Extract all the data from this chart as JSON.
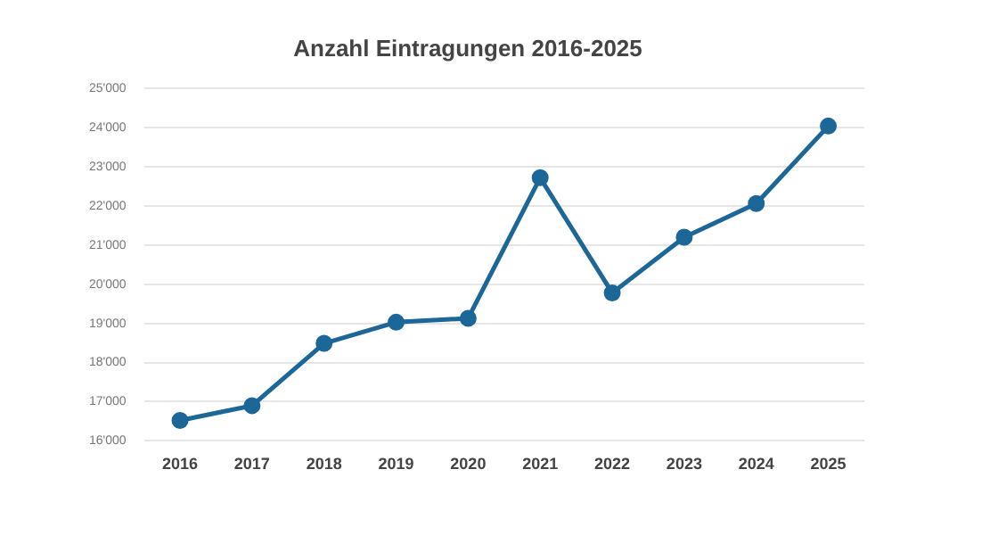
{
  "chart_data": {
    "type": "line",
    "title": "Anzahl Eintragungen 2016-2025",
    "categories": [
      "2016",
      "2017",
      "2018",
      "2019",
      "2020",
      "2021",
      "2022",
      "2023",
      "2024",
      "2025"
    ],
    "series": [
      {
        "color": "#1c6798",
        "values": [
          16520,
          16900,
          18490,
          19030,
          19130,
          22720,
          19780,
          21200,
          22060,
          24040
        ]
      }
    ],
    "ylim": [
      16000,
      25000
    ],
    "yticks": [
      {
        "value": 16000,
        "label": "16'000"
      },
      {
        "value": 17000,
        "label": "17'000"
      },
      {
        "value": 18000,
        "label": "18'000"
      },
      {
        "value": 19000,
        "label": "19'000"
      },
      {
        "value": 20000,
        "label": "20'000"
      },
      {
        "value": 21000,
        "label": "21'000"
      },
      {
        "value": 22000,
        "label": "22'000"
      },
      {
        "value": 23000,
        "label": "23'000"
      },
      {
        "value": 24000,
        "label": "24'000"
      },
      {
        "value": 25000,
        "label": "25'000"
      }
    ],
    "grid": "y",
    "legend": false,
    "marker": "circle",
    "line_style": "solid"
  }
}
